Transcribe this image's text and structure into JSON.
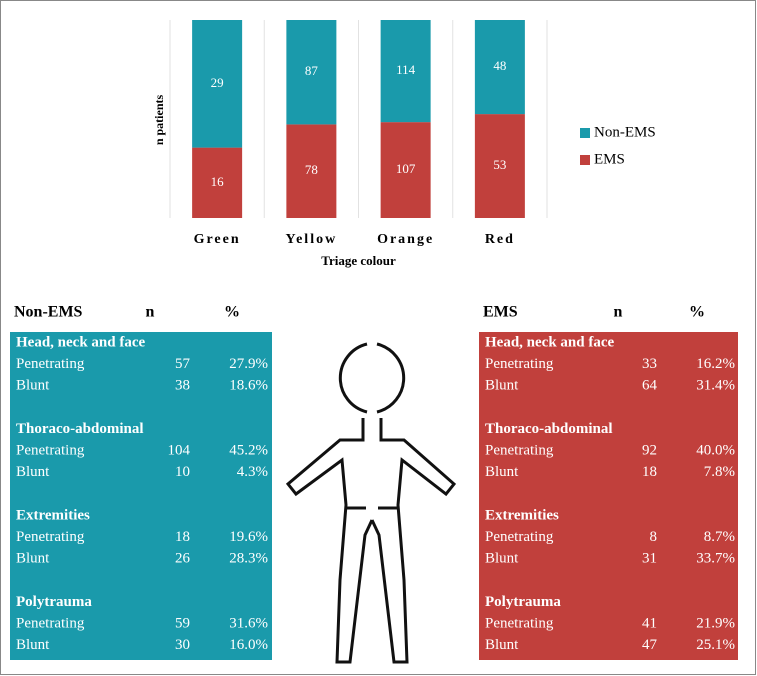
{
  "chart_data": {
    "type": "bar",
    "stacked": "percent",
    "y_label": "n patients",
    "x_label": "Triage colour",
    "categories": [
      "Green",
      "Yellow",
      "Orange",
      "Red"
    ],
    "series": [
      {
        "name": "EMS",
        "color": "#c1403c",
        "values": [
          16,
          78,
          107,
          53
        ]
      },
      {
        "name": "Non-EMS",
        "color": "#1a9aab",
        "values": [
          29,
          87,
          114,
          48
        ]
      }
    ],
    "legend": "right"
  },
  "tables": [
    {
      "title": "Non-EMS",
      "columns": [
        "n",
        "%"
      ],
      "color": "#1a9aab",
      "groups": [
        {
          "name": "Head, neck and face",
          "rows": [
            {
              "label": "Penetrating",
              "n": "57",
              "pct": "27.9%"
            },
            {
              "label": "Blunt",
              "n": "38",
              "pct": "18.6%"
            }
          ]
        },
        {
          "name": "Thoraco-abdominal",
          "rows": [
            {
              "label": "Penetrating",
              "n": "104",
              "pct": "45.2%"
            },
            {
              "label": "Blunt",
              "n": "10",
              "pct": "4.3%"
            }
          ]
        },
        {
          "name": "Extremities",
          "rows": [
            {
              "label": "Penetrating",
              "n": "18",
              "pct": "19.6%"
            },
            {
              "label": "Blunt",
              "n": "26",
              "pct": "28.3%"
            }
          ]
        },
        {
          "name": "Polytrauma",
          "rows": [
            {
              "label": "Penetrating",
              "n": "59",
              "pct": "31.6%"
            },
            {
              "label": "Blunt",
              "n": "30",
              "pct": "16.0%"
            }
          ]
        }
      ]
    },
    {
      "title": "EMS",
      "columns": [
        "n",
        "%"
      ],
      "color": "#c1403c",
      "groups": [
        {
          "name": "Head, neck and face",
          "rows": [
            {
              "label": "Penetrating",
              "n": "33",
              "pct": "16.2%"
            },
            {
              "label": "Blunt",
              "n": "64",
              "pct": "31.4%"
            }
          ]
        },
        {
          "name": "Thoraco-abdominal",
          "rows": [
            {
              "label": "Penetrating",
              "n": "92",
              "pct": "40.0%"
            },
            {
              "label": "Blunt",
              "n": "18",
              "pct": "7.8%"
            }
          ]
        },
        {
          "name": "Extremities",
          "rows": [
            {
              "label": "Penetrating",
              "n": "8",
              "pct": "8.7%"
            },
            {
              "label": "Blunt",
              "n": "31",
              "pct": "33.7%"
            }
          ]
        },
        {
          "name": "Polytrauma",
          "rows": [
            {
              "label": "Penetrating",
              "n": "41",
              "pct": "21.9%"
            },
            {
              "label": "Blunt",
              "n": "47",
              "pct": "25.1%"
            }
          ]
        }
      ]
    }
  ]
}
